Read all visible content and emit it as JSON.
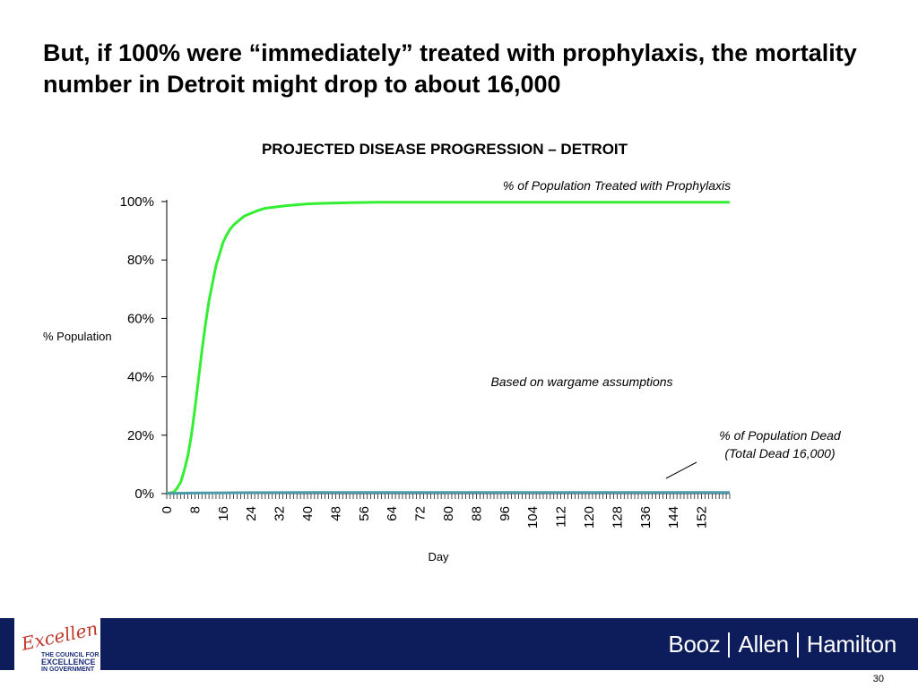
{
  "slide": {
    "headline": "But, if 100% were “immediately” treated with prophylaxis, the mortality number in Detroit might drop to about 16,000",
    "page_number": "30"
  },
  "footer": {
    "brand_parts": [
      "Booz",
      "Allen",
      "Hamilton"
    ],
    "logo_script": "Excellence",
    "logo_lines": [
      "THE COUNCIL FOR",
      "EXCELLENCE",
      "IN GOVERNMENT"
    ],
    "bar_color": "#0d1c5a"
  },
  "chart_data": {
    "type": "line",
    "title": "PROJECTED DISEASE PROGRESSION – DETROIT",
    "xlabel": "Day",
    "ylabel": "% Population",
    "xlim": [
      0,
      160
    ],
    "ylim": [
      0,
      100
    ],
    "x_ticks": [
      0,
      8,
      16,
      24,
      32,
      40,
      48,
      56,
      64,
      72,
      80,
      88,
      96,
      104,
      112,
      120,
      128,
      136,
      144,
      152
    ],
    "y_ticks": [
      "0%",
      "20%",
      "40%",
      "60%",
      "80%",
      "100%"
    ],
    "y_tick_values": [
      0,
      20,
      40,
      60,
      80,
      100
    ],
    "grid": false,
    "series": [
      {
        "name": "% of Population Treated with Prophylaxis",
        "color": "#33ee33",
        "x": [
          0,
          2,
          3,
          4,
          5,
          6,
          7,
          8,
          9,
          10,
          11,
          12,
          13,
          14,
          15,
          16,
          17,
          18,
          19,
          20,
          22,
          24,
          26,
          28,
          30,
          32,
          34,
          36,
          38,
          40,
          44,
          48,
          52,
          56,
          60,
          80,
          100,
          120,
          140,
          160
        ],
        "values": [
          0,
          0.5,
          2,
          4,
          8,
          13,
          20,
          29,
          39,
          49,
          58,
          66,
          72,
          78,
          82,
          86,
          88.5,
          90.5,
          92,
          93,
          95,
          96,
          97,
          97.7,
          98,
          98.3,
          98.6,
          98.8,
          99,
          99.2,
          99.4,
          99.5,
          99.6,
          99.7,
          99.8,
          99.8,
          99.8,
          99.8,
          99.8,
          99.8
        ]
      },
      {
        "name": "% of Population Dead (Total Dead 16,000)",
        "color": "#4a9aaa",
        "x": [
          0,
          10,
          20,
          40,
          80,
          120,
          160
        ],
        "values": [
          0.1,
          0.2,
          0.3,
          0.4,
          0.4,
          0.4,
          0.4
        ]
      }
    ],
    "annotations": {
      "treated_label": "% of Population Treated with Prophylaxis",
      "dead_label_line1": "% of Population Dead",
      "dead_label_line2": "(Total Dead 16,000)",
      "note": "Based on wargame assumptions"
    }
  }
}
